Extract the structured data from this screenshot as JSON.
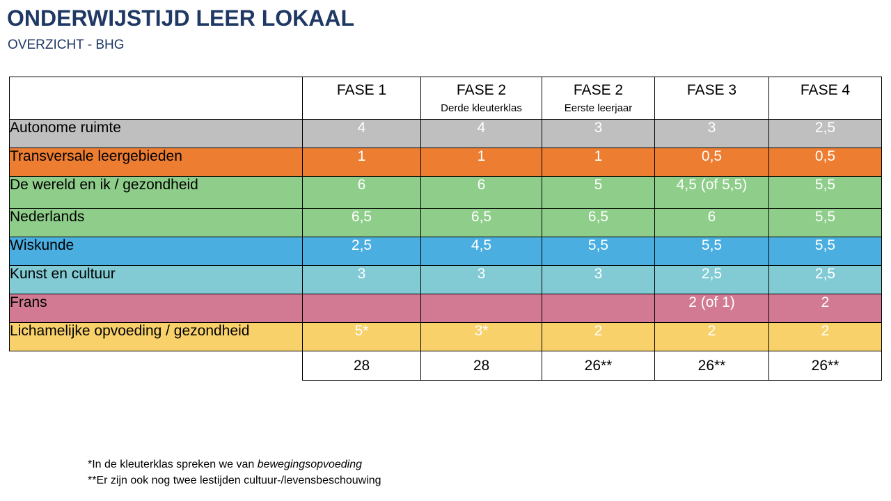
{
  "title": "ONDERWIJSTIJD  LEER LOKAAL",
  "subtitle": "OVERZICHT - BHG",
  "columns": [
    {
      "phase": "FASE 1",
      "sub": ""
    },
    {
      "phase": "FASE 2",
      "sub": "Derde kleuterklas"
    },
    {
      "phase": "FASE 2",
      "sub": "Eerste leerjaar"
    },
    {
      "phase": "FASE 3",
      "sub": ""
    },
    {
      "phase": "FASE 4",
      "sub": ""
    }
  ],
  "rows": [
    {
      "label": "Autonome ruimte",
      "color": "#bfbfbf",
      "values": [
        "4",
        "4",
        "3",
        "3",
        "2,5"
      ]
    },
    {
      "label": "Transversale leergebieden",
      "color": "#ed7d31",
      "values": [
        "1",
        "1",
        "1",
        "0,5",
        "0,5"
      ]
    },
    {
      "label": "De wereld en ik / gezondheid",
      "color": "#8fce8a",
      "values": [
        "6",
        "6",
        "5",
        "4,5 (of 5,5)",
        "5,5"
      ]
    },
    {
      "label": "Nederlands",
      "color": "#8fce8a",
      "values": [
        "6,5",
        "6,5",
        "6,5",
        "6",
        "5,5"
      ]
    },
    {
      "label": "Wiskunde",
      "color": "#4aaee0",
      "values": [
        "2,5",
        "4,5",
        "5,5",
        "5,5",
        "5,5"
      ]
    },
    {
      "label": "Kunst en cultuur",
      "color": "#82cbd5",
      "values": [
        "3",
        "3",
        "3",
        "2,5",
        "2,5"
      ]
    },
    {
      "label": "Frans",
      "color": "#d27a93",
      "values": [
        "",
        "",
        "",
        "2 (of 1)",
        "2"
      ]
    },
    {
      "label": "Lichamelijke opvoeding / gezondheid",
      "color": "#f8d16b",
      "values": [
        "5*",
        "3*",
        "2",
        "2",
        "2"
      ]
    }
  ],
  "totals": [
    "28",
    "28",
    "26**",
    "26**",
    "26**"
  ],
  "footnotes": {
    "note1_text": "*In de kleuterklas spreken we van ",
    "note1_italic": "bewegingsopvoeding",
    "note2": "**Er zijn ook nog twee lestijden cultuur-/levensbeschouwing"
  }
}
